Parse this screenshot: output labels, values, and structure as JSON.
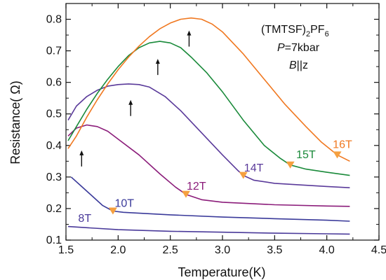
{
  "chart_data": {
    "type": "line",
    "xlabel": "Temperature(K)",
    "ylabel": "Resistance(   Ω)",
    "xlim": [
      1.5,
      4.5
    ],
    "ylim": [
      0.1,
      0.85
    ],
    "xticks": [
      "1.5",
      "2.0",
      "2.5",
      "3.0",
      "3.5",
      "4.0",
      "4.5"
    ],
    "yticks": [
      "0.1",
      "0.2",
      "0.3",
      "0.4",
      "0.5",
      "0.6",
      "0.7",
      "0.8"
    ],
    "grid": false,
    "annotation": {
      "compound_main": "(TMTSF)",
      "compound_sub1": "2",
      "compound_mid": "PF",
      "compound_sub2": "6",
      "pressure_italic": "P",
      "pressure_rest": "=7kbar",
      "field_italic": "B",
      "field_rest": "||z"
    },
    "series": [
      {
        "name": "8T",
        "color": "#4a3a9a",
        "points": [
          [
            1.52,
            0.143
          ],
          [
            2.0,
            0.133
          ],
          [
            2.5,
            0.128
          ],
          [
            3.0,
            0.125
          ],
          [
            3.5,
            0.122
          ],
          [
            4.0,
            0.12
          ],
          [
            4.22,
            0.119
          ]
        ],
        "label_at": [
          1.68,
          0.158
        ]
      },
      {
        "name": "10T",
        "color": "#3a3a9a",
        "points": [
          [
            1.55,
            0.3
          ],
          [
            1.65,
            0.27
          ],
          [
            1.75,
            0.24
          ],
          [
            1.85,
            0.21
          ],
          [
            1.95,
            0.192
          ],
          [
            2.05,
            0.188
          ],
          [
            2.5,
            0.18
          ],
          [
            3.0,
            0.173
          ],
          [
            3.5,
            0.168
          ],
          [
            4.0,
            0.163
          ],
          [
            4.22,
            0.16
          ]
        ],
        "label_at": [
          2.06,
          0.205
        ],
        "marker": [
          1.95,
          0.192
        ]
      },
      {
        "name": "12T",
        "color": "#8b1c7a",
        "points": [
          [
            1.52,
            0.43
          ],
          [
            1.6,
            0.455
          ],
          [
            1.7,
            0.465
          ],
          [
            1.8,
            0.46
          ],
          [
            1.9,
            0.445
          ],
          [
            2.0,
            0.42
          ],
          [
            2.2,
            0.37
          ],
          [
            2.4,
            0.31
          ],
          [
            2.55,
            0.268
          ],
          [
            2.65,
            0.245
          ],
          [
            2.8,
            0.228
          ],
          [
            3.0,
            0.22
          ],
          [
            3.5,
            0.212
          ],
          [
            4.0,
            0.208
          ],
          [
            4.22,
            0.207
          ]
        ],
        "label_at": [
          2.75,
          0.26
        ],
        "marker": [
          2.65,
          0.245
        ],
        "arrow_at": [
          1.65,
          0.36
        ]
      },
      {
        "name": "14T",
        "color": "#5a3a9a",
        "points": [
          [
            1.52,
            0.48
          ],
          [
            1.6,
            0.525
          ],
          [
            1.7,
            0.555
          ],
          [
            1.8,
            0.575
          ],
          [
            1.9,
            0.588
          ],
          [
            2.0,
            0.593
          ],
          [
            2.1,
            0.595
          ],
          [
            2.2,
            0.593
          ],
          [
            2.3,
            0.585
          ],
          [
            2.45,
            0.555
          ],
          [
            2.6,
            0.51
          ],
          [
            2.8,
            0.44
          ],
          [
            3.0,
            0.37
          ],
          [
            3.15,
            0.32
          ],
          [
            3.2,
            0.305
          ],
          [
            3.3,
            0.29
          ],
          [
            3.5,
            0.28
          ],
          [
            4.0,
            0.27
          ],
          [
            4.22,
            0.266
          ]
        ],
        "label_at": [
          3.3,
          0.318
        ],
        "marker": [
          3.2,
          0.305
        ],
        "arrow_at": [
          2.12,
          0.52
        ]
      },
      {
        "name": "15T",
        "color": "#1a8a3a",
        "points": [
          [
            1.52,
            0.415
          ],
          [
            1.6,
            0.46
          ],
          [
            1.7,
            0.515
          ],
          [
            1.8,
            0.565
          ],
          [
            1.9,
            0.61
          ],
          [
            2.0,
            0.65
          ],
          [
            2.1,
            0.685
          ],
          [
            2.2,
            0.71
          ],
          [
            2.3,
            0.725
          ],
          [
            2.4,
            0.73
          ],
          [
            2.5,
            0.725
          ],
          [
            2.6,
            0.71
          ],
          [
            2.7,
            0.68
          ],
          [
            2.85,
            0.63
          ],
          [
            3.0,
            0.57
          ],
          [
            3.2,
            0.48
          ],
          [
            3.4,
            0.4
          ],
          [
            3.55,
            0.36
          ],
          [
            3.65,
            0.338
          ],
          [
            3.8,
            0.325
          ],
          [
            4.0,
            0.315
          ],
          [
            4.22,
            0.305
          ]
        ],
        "label_at": [
          3.8,
          0.36
        ],
        "marker": [
          3.65,
          0.338
        ],
        "arrow_at": [
          2.38,
          0.65
        ]
      },
      {
        "name": "16T",
        "color": "#f07820",
        "points": [
          [
            1.52,
            0.39
          ],
          [
            1.6,
            0.43
          ],
          [
            1.7,
            0.49
          ],
          [
            1.8,
            0.545
          ],
          [
            1.9,
            0.595
          ],
          [
            2.0,
            0.64
          ],
          [
            2.1,
            0.68
          ],
          [
            2.2,
            0.715
          ],
          [
            2.3,
            0.745
          ],
          [
            2.4,
            0.77
          ],
          [
            2.5,
            0.788
          ],
          [
            2.6,
            0.8
          ],
          [
            2.7,
            0.804
          ],
          [
            2.8,
            0.8
          ],
          [
            2.9,
            0.785
          ],
          [
            3.0,
            0.76
          ],
          [
            3.2,
            0.69
          ],
          [
            3.4,
            0.61
          ],
          [
            3.6,
            0.53
          ],
          [
            3.8,
            0.46
          ],
          [
            3.95,
            0.41
          ],
          [
            4.1,
            0.37
          ],
          [
            4.22,
            0.35
          ]
        ],
        "label_at": [
          4.15,
          0.392
        ],
        "marker": [
          4.1,
          0.37
        ],
        "arrow_at": [
          2.68,
          0.74
        ]
      }
    ]
  },
  "marker_color": "#f5a040"
}
